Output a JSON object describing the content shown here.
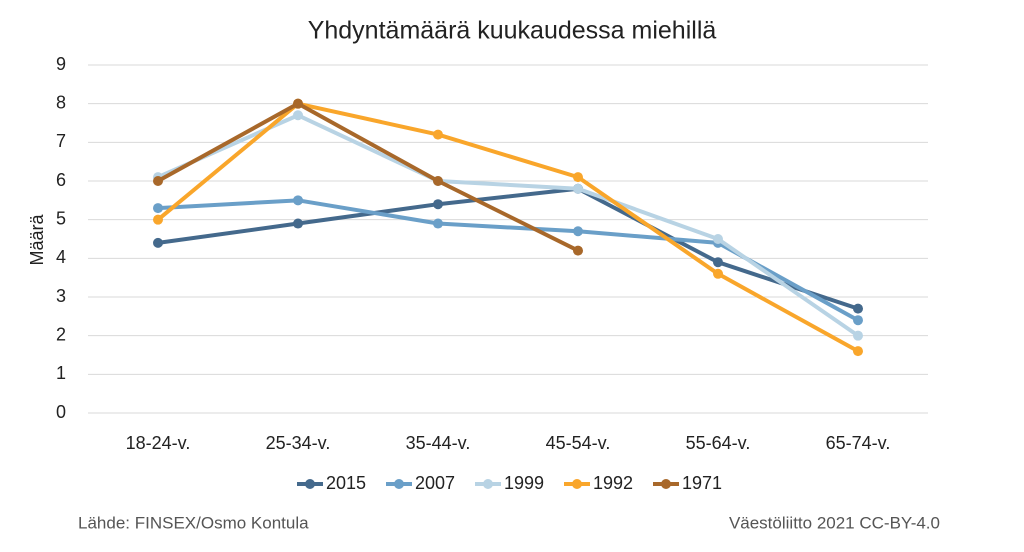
{
  "chart_data": {
    "type": "line",
    "title": "Yhdyntämäärä kuukaudessa miehillä",
    "y_label": "Määrä",
    "categories": [
      "18-24-v.",
      "25-34-v.",
      "35-44-v.",
      "45-54-v.",
      "55-64-v.",
      "65-74-v."
    ],
    "series": [
      {
        "name": "2015",
        "color": "#44698c",
        "values": [
          4.4,
          4.9,
          5.4,
          5.8,
          3.9,
          2.7
        ]
      },
      {
        "name": "2007",
        "color": "#6a9fc8",
        "values": [
          5.3,
          5.5,
          4.9,
          4.7,
          4.4,
          2.4
        ]
      },
      {
        "name": "1999",
        "color": "#b8d3e4",
        "values": [
          6.1,
          7.7,
          6.0,
          5.8,
          4.5,
          2.0
        ]
      },
      {
        "name": "1992",
        "color": "#f9a62b",
        "values": [
          5.0,
          8.0,
          7.2,
          6.1,
          3.6,
          1.6
        ]
      },
      {
        "name": "1971",
        "color": "#a8682a",
        "values": [
          6.0,
          8.0,
          6.0,
          4.2,
          null,
          null
        ]
      }
    ],
    "ylim": [
      0,
      9
    ],
    "yticks": [
      0,
      1,
      2,
      3,
      4,
      5,
      6,
      7,
      8,
      9
    ],
    "grid": true,
    "legend": "bottom",
    "source": "Lähde: FINSEX/Osmo Kontula",
    "credit": "Väestöliitto 2021 CC-BY-4.0"
  }
}
